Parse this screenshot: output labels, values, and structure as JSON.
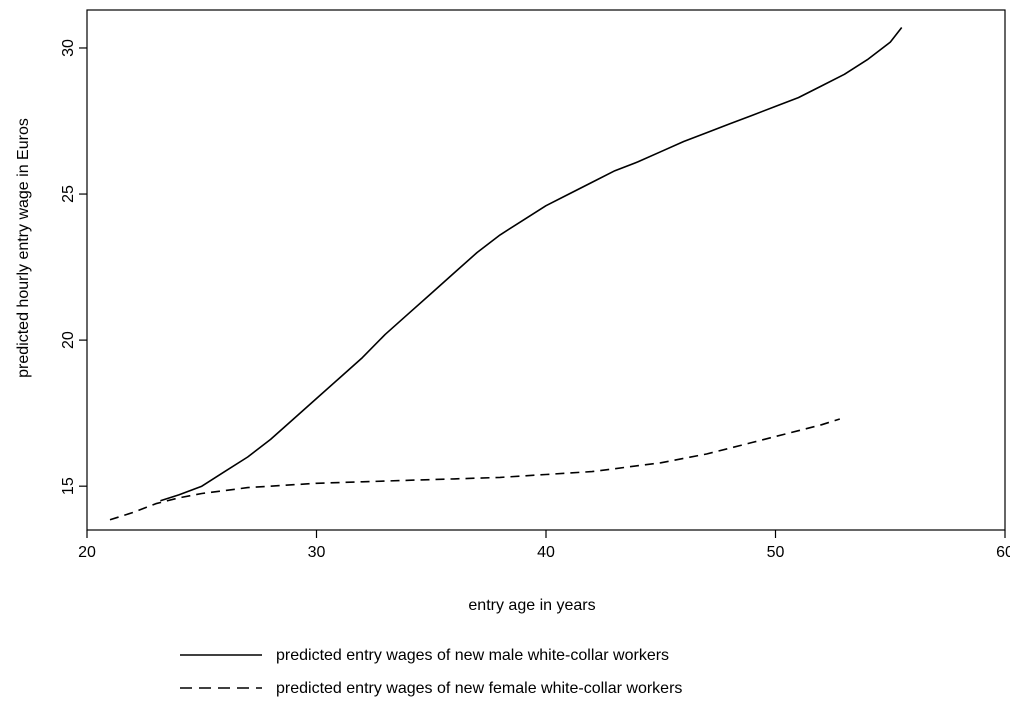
{
  "chart_data": {
    "type": "line",
    "xlabel": "entry age in years",
    "ylabel": "predicted hourly entry wage in Euros",
    "xlim": [
      20,
      60
    ],
    "ylim": [
      13.5,
      31.3
    ],
    "xticks": [
      20,
      30,
      40,
      50,
      60
    ],
    "yticks": [
      15,
      20,
      25,
      30
    ],
    "grid": false,
    "legend_position": "bottom",
    "series": [
      {
        "name": "predicted entry wages of new male white-collar workers",
        "style": "solid",
        "color": "#000000",
        "x": [
          23.2,
          24,
          25,
          26,
          27,
          28,
          29,
          30,
          31,
          32,
          33,
          34,
          35,
          36,
          37,
          38,
          39,
          40,
          41,
          42,
          43,
          44,
          45,
          46,
          47,
          48,
          49,
          50,
          51,
          52,
          53,
          54,
          55,
          55.5
        ],
        "y": [
          14.5,
          14.7,
          15.0,
          15.5,
          16.0,
          16.6,
          17.3,
          18.0,
          18.7,
          19.4,
          20.2,
          20.9,
          21.6,
          22.3,
          23.0,
          23.6,
          24.1,
          24.6,
          25.0,
          25.4,
          25.8,
          26.1,
          26.45,
          26.8,
          27.1,
          27.4,
          27.7,
          28.0,
          28.3,
          28.7,
          29.1,
          29.6,
          30.2,
          30.7
        ]
      },
      {
        "name": "predicted entry wages of new female white-collar workers",
        "style": "dashed",
        "color": "#000000",
        "x": [
          21,
          22,
          23,
          24,
          25,
          26,
          27,
          28,
          29,
          30,
          32,
          34,
          36,
          38,
          40,
          41,
          42,
          43,
          44,
          45,
          46,
          47,
          48,
          49,
          50,
          51,
          52,
          52.8
        ],
        "y": [
          13.85,
          14.1,
          14.4,
          14.6,
          14.75,
          14.85,
          14.95,
          15.0,
          15.05,
          15.1,
          15.15,
          15.2,
          15.25,
          15.3,
          15.4,
          15.45,
          15.5,
          15.6,
          15.7,
          15.8,
          15.95,
          16.1,
          16.3,
          16.5,
          16.7,
          16.9,
          17.1,
          17.3
        ]
      }
    ]
  }
}
